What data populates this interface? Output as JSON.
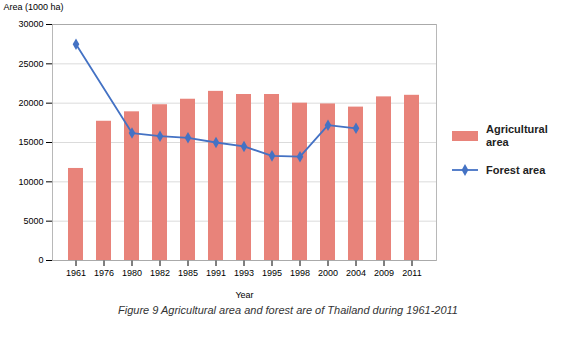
{
  "chart_data": {
    "type": "bar",
    "caption": "Figure 9 Agricultural area and forest are of Thailand during 1961-2011",
    "xlabel": "Year",
    "ylabel": "Area (1000 ha)",
    "categories": [
      "1961",
      "1976",
      "1980",
      "1982",
      "1985",
      "1991",
      "1993",
      "1995",
      "1998",
      "2000",
      "2004",
      "2009",
      "2011"
    ],
    "series": [
      {
        "name": "Agricultural\narea",
        "type": "bar",
        "color": "#E8837A",
        "values": [
          11700,
          17700,
          18900,
          19800,
          20500,
          21500,
          21100,
          21100,
          20000,
          19900,
          19500,
          20800,
          21000
        ]
      },
      {
        "name": "Forest area",
        "type": "line",
        "color": "#4472C4",
        "marker": "diamond",
        "values": [
          27500,
          null,
          16200,
          15800,
          15600,
          15000,
          14500,
          13300,
          13200,
          17200,
          16800,
          null,
          null
        ]
      }
    ],
    "ylim": [
      0,
      30000
    ],
    "yticks": [
      0,
      5000,
      10000,
      15000,
      20000,
      25000,
      30000
    ],
    "grid": true,
    "legend": "right"
  }
}
